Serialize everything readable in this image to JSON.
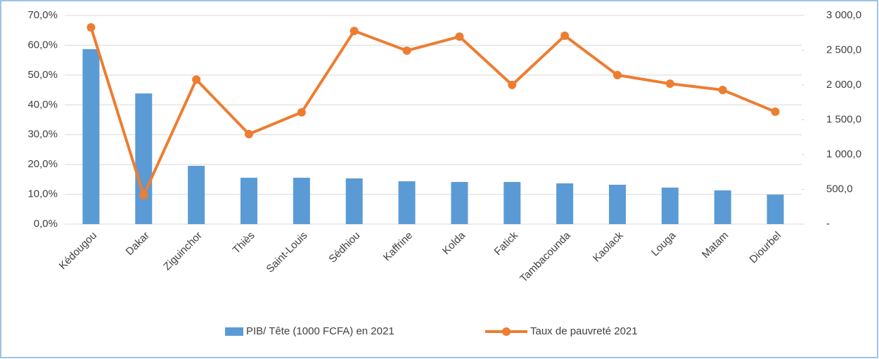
{
  "chart_data": {
    "type": "bar_line",
    "categories": [
      "Kédougou",
      "Dakar",
      "Ziguinchor",
      "Thiès",
      "Saint-Louis",
      "Sédhiou",
      "Kaffrine",
      "Kolda",
      "Fatick",
      "Tambacounda",
      "Kaolack",
      "Louga",
      "Matam",
      "Diourbel"
    ],
    "series": [
      {
        "name": "PIB/ Tête (1000 FCFA) en 2021",
        "type": "bar",
        "axis": "y2",
        "color": "#5b9bd5",
        "values": [
          2515,
          1879,
          838,
          667,
          667,
          657,
          616,
          606,
          606,
          586,
          566,
          525,
          485,
          424
        ]
      },
      {
        "name": "Taux de pauvreté 2021",
        "type": "line",
        "axis": "y",
        "color": "#ed7d31",
        "values": [
          66.0,
          9.7,
          48.5,
          30.2,
          37.5,
          64.8,
          58.2,
          62.9,
          46.7,
          63.2,
          50.0,
          47.1,
          45.0,
          37.7
        ]
      }
    ],
    "ylim": [
      0,
      70
    ],
    "yticks": [
      {
        "value": 0,
        "label": "0,0%"
      },
      {
        "value": 10,
        "label": "10,0%"
      },
      {
        "value": 20,
        "label": "20,0%"
      },
      {
        "value": 30,
        "label": "30,0%"
      },
      {
        "value": 40,
        "label": "40,0%"
      },
      {
        "value": 50,
        "label": "50,0%"
      },
      {
        "value": 60,
        "label": "60,0%"
      },
      {
        "value": 70,
        "label": "70,0%"
      }
    ],
    "y2lim": [
      0,
      3000
    ],
    "y2ticks": [
      {
        "value": 0,
        "label": "-"
      },
      {
        "value": 500,
        "label": "500,0"
      },
      {
        "value": 1000,
        "label": "1 000,0"
      },
      {
        "value": 1500,
        "label": "1 500,0"
      },
      {
        "value": 2000,
        "label": "2 000,0"
      },
      {
        "value": 2500,
        "label": "2 500,0"
      },
      {
        "value": 3000,
        "label": "3 000,0"
      }
    ],
    "grid": true,
    "legend": "bottom"
  }
}
